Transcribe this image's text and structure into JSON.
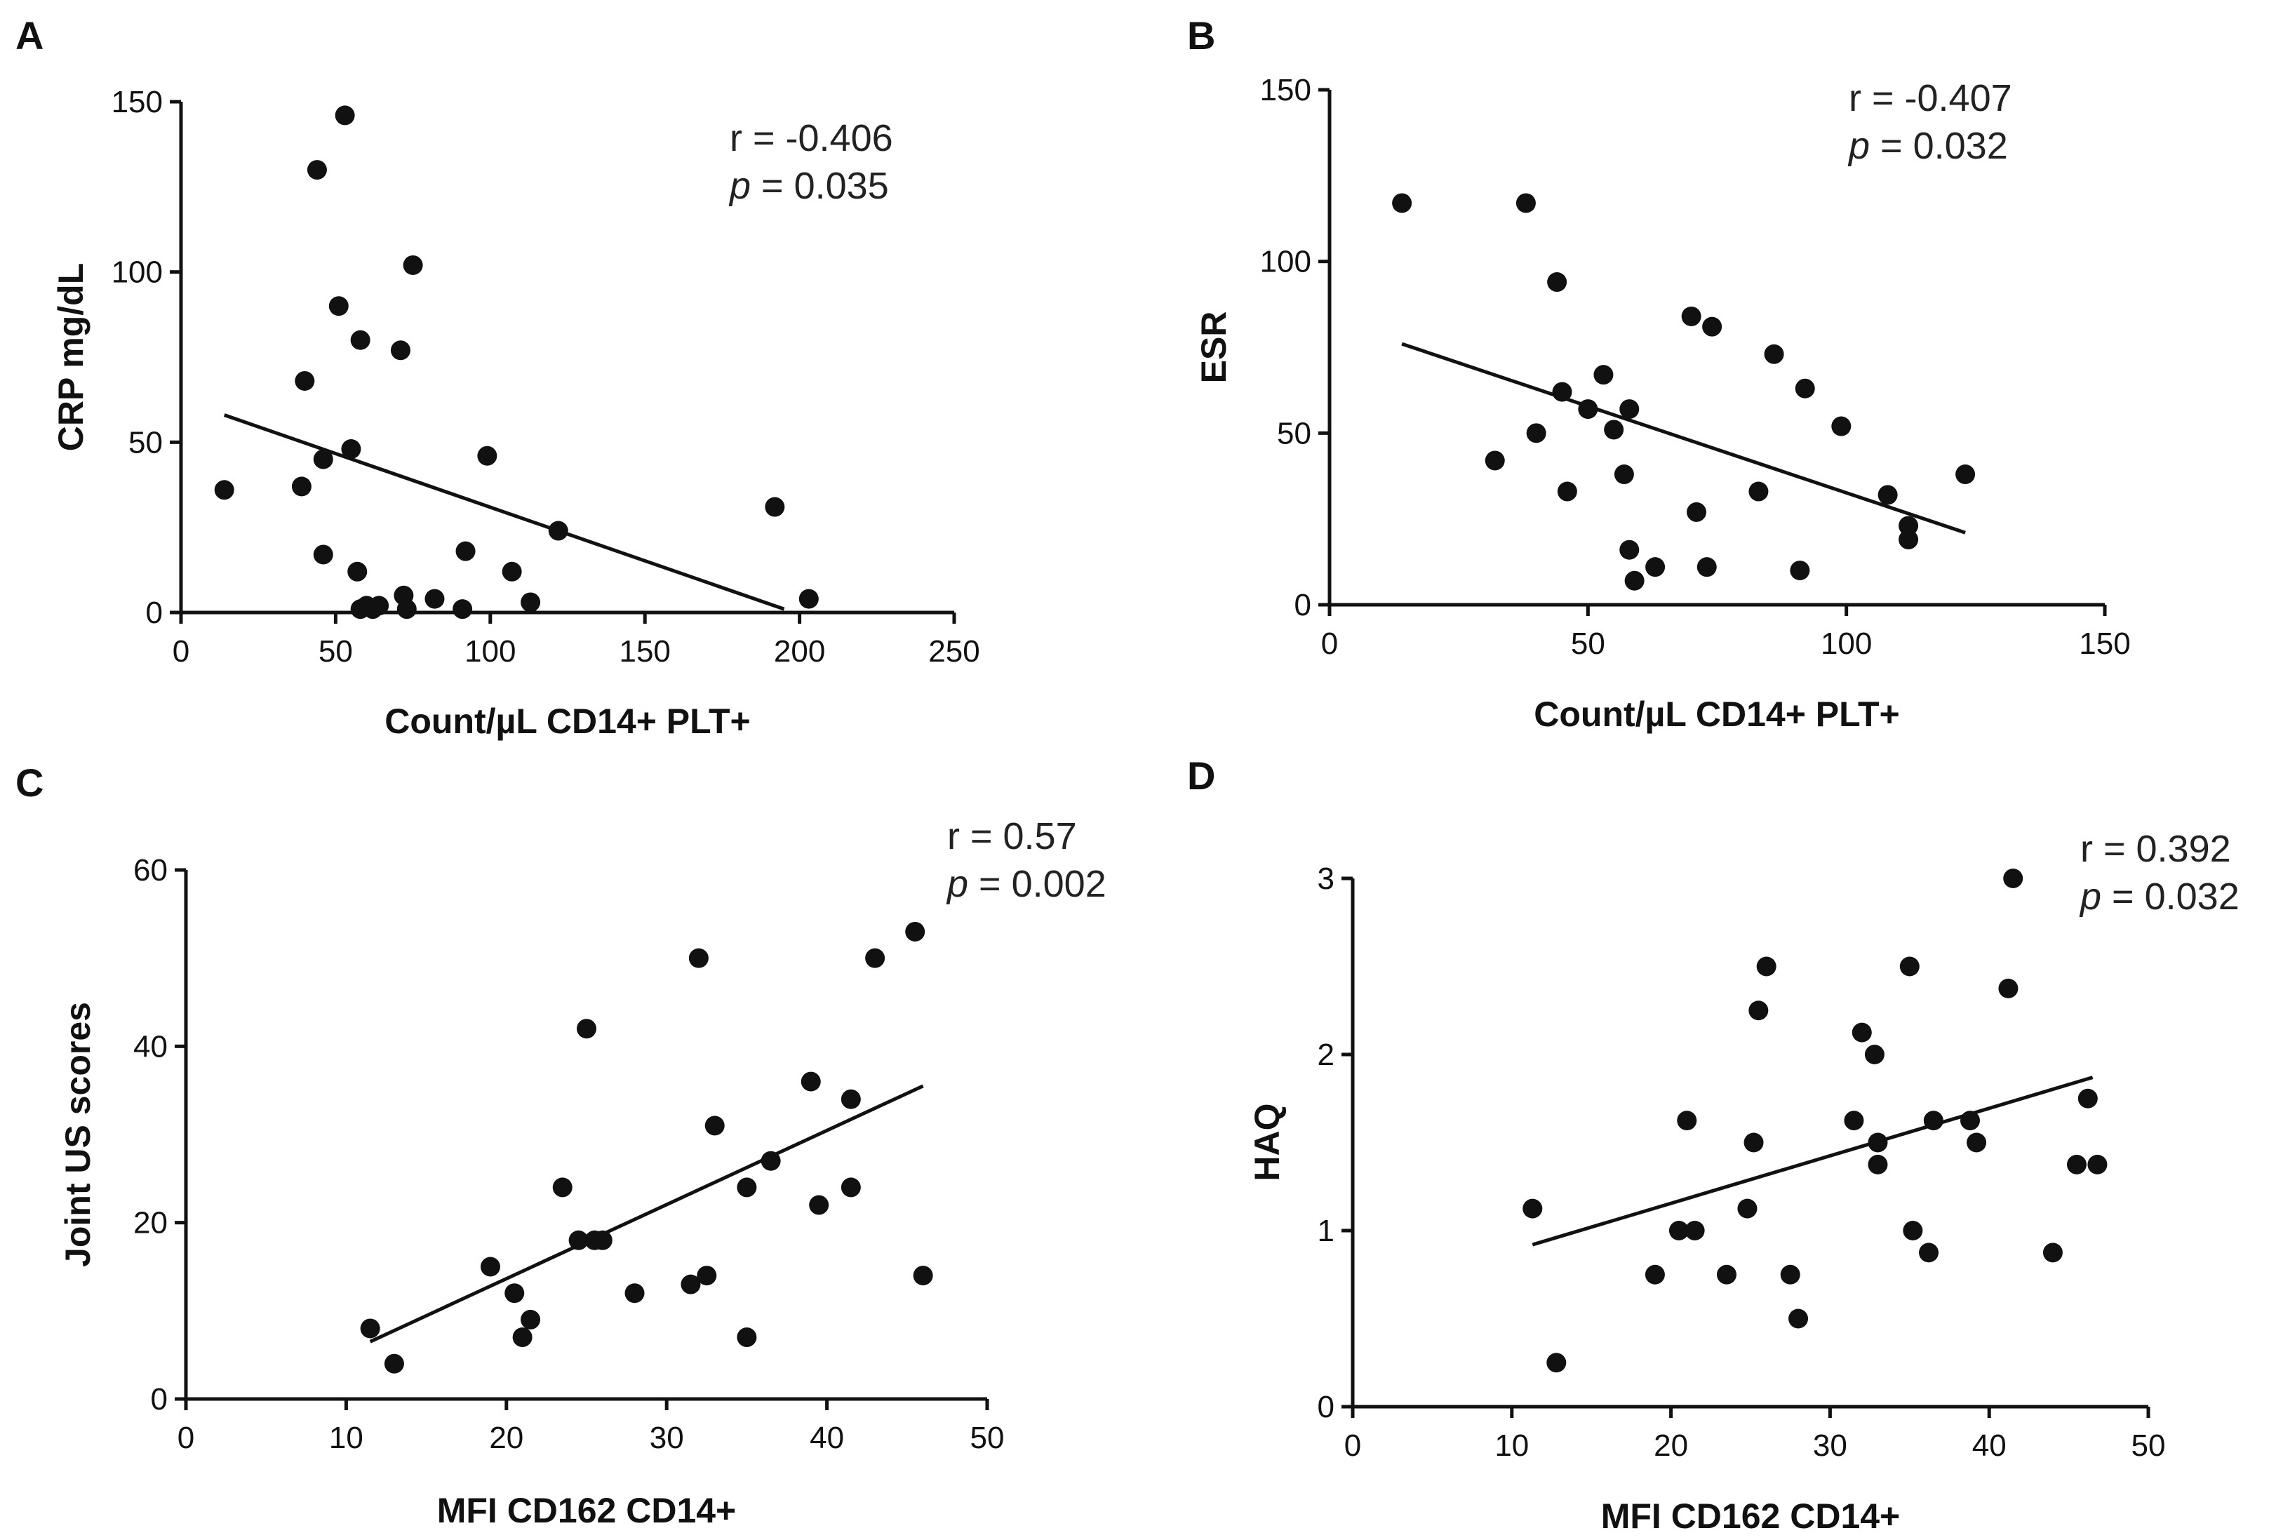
{
  "chart_data": [
    {
      "type": "scatter",
      "panel": "A",
      "xlabel": "Count/µL CD14+ PLT+",
      "ylabel": "CRP mg/dL",
      "xlim": [
        0,
        250
      ],
      "ylim": [
        0,
        150
      ],
      "xticks": [
        "0",
        "50",
        "100",
        "150",
        "200",
        "250"
      ],
      "yticks": [
        "0",
        "50",
        "100",
        "150"
      ],
      "r_text": "r = -0.406",
      "p_label": "p",
      "p_value": " = 0.035",
      "points": [
        [
          14,
          36
        ],
        [
          39,
          37
        ],
        [
          40,
          68
        ],
        [
          44,
          130
        ],
        [
          46,
          17
        ],
        [
          46,
          45
        ],
        [
          51,
          90
        ],
        [
          53,
          146
        ],
        [
          55,
          48
        ],
        [
          57,
          12
        ],
        [
          58,
          1
        ],
        [
          58,
          80
        ],
        [
          60,
          2
        ],
        [
          62,
          1
        ],
        [
          64,
          2
        ],
        [
          71,
          77
        ],
        [
          72,
          5
        ],
        [
          73,
          1
        ],
        [
          75,
          102
        ],
        [
          82,
          4
        ],
        [
          91,
          1
        ],
        [
          92,
          18
        ],
        [
          99,
          46
        ],
        [
          107,
          12
        ],
        [
          113,
          3
        ],
        [
          122,
          24
        ],
        [
          192,
          31
        ],
        [
          203,
          4
        ]
      ],
      "fit": [
        [
          14,
          58
        ],
        [
          195,
          1
        ]
      ]
    },
    {
      "type": "scatter",
      "panel": "B",
      "xlabel": "Count/µL CD14+ PLT+",
      "ylabel": "ESR",
      "xlim": [
        0,
        150
      ],
      "ylim": [
        0,
        150
      ],
      "xticks": [
        "0",
        "50",
        "100",
        "150"
      ],
      "yticks": [
        "0",
        "50",
        "100",
        "150"
      ],
      "r_text": "r = -0.407",
      "p_label": "p",
      "p_value": " = 0.032",
      "points": [
        [
          14,
          117
        ],
        [
          32,
          42
        ],
        [
          38,
          117
        ],
        [
          40,
          50
        ],
        [
          44,
          94
        ],
        [
          45,
          62
        ],
        [
          46,
          33
        ],
        [
          50,
          57
        ],
        [
          53,
          67
        ],
        [
          55,
          51
        ],
        [
          57,
          38
        ],
        [
          58,
          57
        ],
        [
          58,
          16
        ],
        [
          59,
          7
        ],
        [
          63,
          11
        ],
        [
          70,
          84
        ],
        [
          71,
          27
        ],
        [
          73,
          11
        ],
        [
          74,
          81
        ],
        [
          83,
          33
        ],
        [
          86,
          73
        ],
        [
          91,
          10
        ],
        [
          92,
          63
        ],
        [
          99,
          52
        ],
        [
          108,
          32
        ],
        [
          112,
          19
        ],
        [
          112,
          23
        ],
        [
          123,
          38
        ]
      ],
      "fit": [
        [
          14,
          76
        ],
        [
          123,
          21
        ]
      ]
    },
    {
      "type": "scatter",
      "panel": "C",
      "xlabel": "MFI CD162 CD14+",
      "ylabel": "Joint US scores",
      "xlim": [
        0,
        50
      ],
      "ylim": [
        0,
        60
      ],
      "xticks": [
        "0",
        "10",
        "20",
        "30",
        "40",
        "50"
      ],
      "yticks": [
        "0",
        "20",
        "40",
        "60"
      ],
      "r_text": "r = 0.57",
      "p_label": "p",
      "p_value": " = 0.002",
      "points": [
        [
          11.5,
          8
        ],
        [
          13,
          4
        ],
        [
          19,
          15
        ],
        [
          20.5,
          12
        ],
        [
          21,
          7
        ],
        [
          21.5,
          9
        ],
        [
          23.5,
          24
        ],
        [
          24.5,
          18
        ],
        [
          25,
          42
        ],
        [
          25.5,
          18
        ],
        [
          26,
          18
        ],
        [
          28,
          12
        ],
        [
          31.5,
          13
        ],
        [
          32,
          50
        ],
        [
          32.5,
          14
        ],
        [
          33,
          31
        ],
        [
          35,
          7
        ],
        [
          35,
          24
        ],
        [
          36.5,
          27
        ],
        [
          39,
          36
        ],
        [
          39.5,
          22
        ],
        [
          41.5,
          24
        ],
        [
          41.5,
          34
        ],
        [
          43,
          50
        ],
        [
          45.5,
          53
        ],
        [
          46,
          14
        ]
      ],
      "fit": [
        [
          11.5,
          6.5
        ],
        [
          46,
          35.5
        ]
      ]
    },
    {
      "type": "scatter",
      "panel": "D",
      "xlabel": "MFI CD162 CD14+",
      "ylabel": "HAQ",
      "xlim": [
        0,
        50
      ],
      "ylim": [
        0,
        3
      ],
      "xticks": [
        "0",
        "10",
        "20",
        "30",
        "40",
        "50"
      ],
      "yticks": [
        "0",
        "1",
        "2",
        "3"
      ],
      "r_text": "r = 0.392",
      "p_label": "p",
      "p_value": " = 0.032",
      "points": [
        [
          11.3,
          1.125
        ],
        [
          12.8,
          0.25
        ],
        [
          19,
          0.75
        ],
        [
          20.5,
          1.0
        ],
        [
          21,
          1.625
        ],
        [
          21.5,
          1.0
        ],
        [
          23.5,
          0.75
        ],
        [
          24.8,
          1.125
        ],
        [
          25.2,
          1.5
        ],
        [
          25.5,
          2.25
        ],
        [
          26,
          2.5
        ],
        [
          27.5,
          0.75
        ],
        [
          28,
          0.5
        ],
        [
          31.5,
          1.625
        ],
        [
          32,
          2.125
        ],
        [
          32.8,
          2.0
        ],
        [
          33,
          1.5
        ],
        [
          33,
          1.375
        ],
        [
          35,
          2.5
        ],
        [
          35.2,
          1.0
        ],
        [
          36.2,
          0.875
        ],
        [
          36.5,
          1.625
        ],
        [
          38.8,
          1.625
        ],
        [
          39.2,
          1.5
        ],
        [
          41.2,
          2.375
        ],
        [
          41.5,
          3.0
        ],
        [
          44,
          0.875
        ],
        [
          45.5,
          1.375
        ],
        [
          46.2,
          1.75
        ],
        [
          46.8,
          1.375
        ]
      ],
      "fit": [
        [
          11.3,
          0.92
        ],
        [
          46.5,
          1.87
        ]
      ]
    }
  ]
}
